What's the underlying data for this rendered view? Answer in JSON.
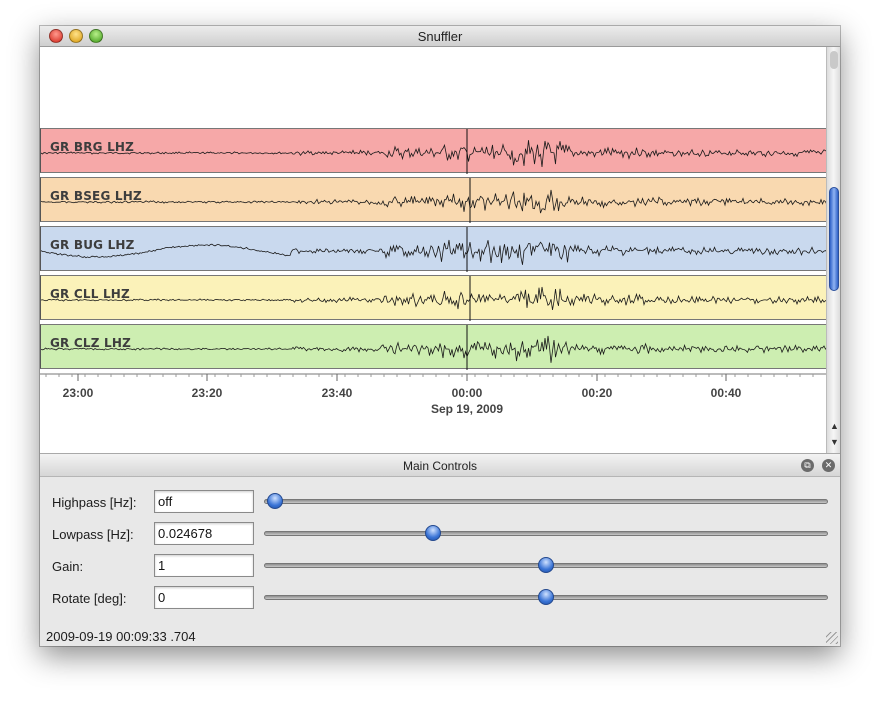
{
  "window": {
    "title": "Snuffler"
  },
  "tracks": [
    {
      "label": "GR BRG  LHZ",
      "color": "#f6a8a8"
    },
    {
      "label": "GR BSEG  LHZ",
      "color": "#f9d9b0"
    },
    {
      "label": "GR BUG  LHZ",
      "color": "#c9d9ee"
    },
    {
      "label": "GR CLL  LHZ",
      "color": "#fbf2b9"
    },
    {
      "label": "GR CLZ  LHZ",
      "color": "#cdeeb1"
    }
  ],
  "time_axis": {
    "ticks": [
      "23:00",
      "23:20",
      "23:40",
      "00:00",
      "00:20",
      "00:40"
    ],
    "date": "Sep 19, 2009"
  },
  "controls": {
    "title": "Main Controls",
    "rows": [
      {
        "label": "Highpass [Hz]:",
        "value": "off",
        "slider_fraction": 0.02
      },
      {
        "label": "Lowpass [Hz]:",
        "value": "0.024678",
        "slider_fraction": 0.3
      },
      {
        "label": "Gain:",
        "value": "1",
        "slider_fraction": 0.5
      },
      {
        "label": "Rotate [deg]:",
        "value": "0",
        "slider_fraction": 0.5
      }
    ]
  },
  "status": {
    "text": "2009-09-19 00:09:33 .704"
  },
  "icons": {
    "panel_float": "float-icon",
    "panel_close": "close-icon"
  }
}
